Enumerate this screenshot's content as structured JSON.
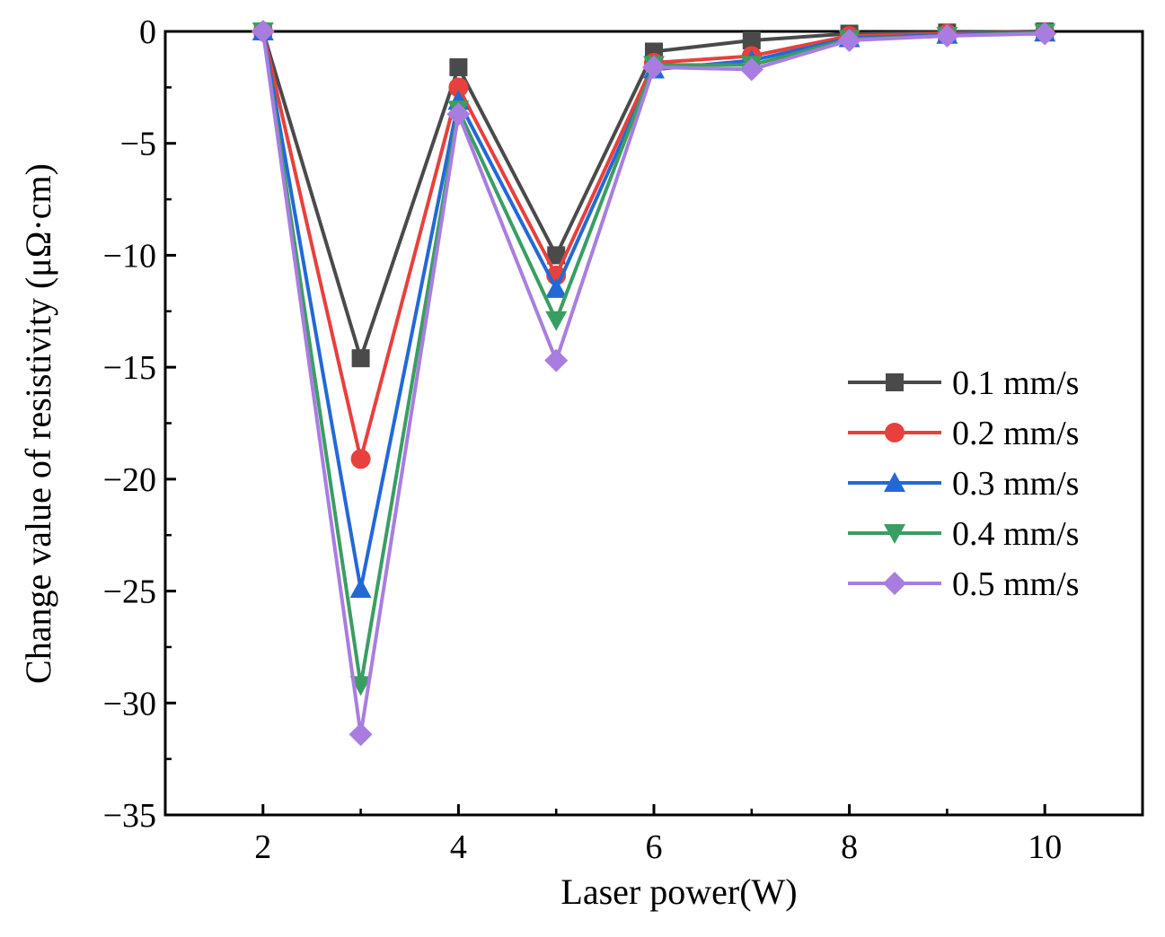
{
  "chart_data": {
    "type": "line",
    "title": "",
    "xlabel": "Laser power(W)",
    "ylabel": "Change value of resistivity (μΩ·cm)",
    "xlim": [
      1,
      11
    ],
    "ylim": [
      -35,
      0
    ],
    "xticks": [
      2,
      4,
      6,
      8,
      10
    ],
    "xtick_labels": [
      "2",
      "4",
      "6",
      "8",
      "10"
    ],
    "yticks": [
      0,
      -5,
      -10,
      -15,
      -20,
      -25,
      -30,
      -35
    ],
    "ytick_labels": [
      "0",
      "−5",
      "−10",
      "−15",
      "−20",
      "−25",
      "−30",
      "−35"
    ],
    "grid": false,
    "legend_position": "right-middle",
    "x": [
      2,
      3,
      4,
      5,
      6,
      7,
      8,
      9,
      10
    ],
    "series": [
      {
        "name": "0.1 mm/s",
        "color": "#4a4a4a",
        "marker": "square",
        "values": [
          0,
          -14.6,
          -1.6,
          -10.0,
          -0.9,
          -0.4,
          -0.1,
          -0.05,
          0
        ]
      },
      {
        "name": "0.2 mm/s",
        "color": "#e8403c",
        "marker": "circle",
        "values": [
          0,
          -19.1,
          -2.5,
          -10.9,
          -1.4,
          -1.1,
          -0.2,
          -0.1,
          -0.05
        ]
      },
      {
        "name": "0.3 mm/s",
        "color": "#2369d6",
        "marker": "triangle-up",
        "values": [
          0,
          -24.9,
          -3.1,
          -11.5,
          -1.7,
          -1.3,
          -0.3,
          -0.15,
          -0.05
        ]
      },
      {
        "name": "0.4 mm/s",
        "color": "#3a9e62",
        "marker": "triangle-down",
        "values": [
          0,
          -29.2,
          -3.5,
          -12.9,
          -1.5,
          -1.5,
          -0.35,
          -0.2,
          -0.05
        ]
      },
      {
        "name": "0.5 mm/s",
        "color": "#a97de0",
        "marker": "diamond",
        "values": [
          0,
          -31.4,
          -3.7,
          -14.7,
          -1.6,
          -1.7,
          -0.4,
          -0.2,
          -0.1
        ]
      }
    ]
  }
}
